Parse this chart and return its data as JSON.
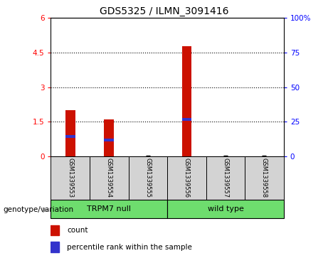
{
  "title": "GDS5325 / ILMN_3091416",
  "samples": [
    "GSM1339553",
    "GSM1339554",
    "GSM1339555",
    "GSM1339556",
    "GSM1339557",
    "GSM1339558"
  ],
  "count_values": [
    2.0,
    1.58,
    0.02,
    4.78,
    0.02,
    0.02
  ],
  "percentile_values": [
    0.85,
    0.7,
    0.0,
    1.6,
    0.0,
    0.0
  ],
  "groups": [
    {
      "label": "TRPM7 null",
      "indices": [
        0,
        1,
        2
      ],
      "color": "#6EDD6E"
    },
    {
      "label": "wild type",
      "indices": [
        3,
        4,
        5
      ],
      "color": "#6EDD6E"
    }
  ],
  "group_label": "genotype/variation",
  "ylim_left": [
    0,
    6
  ],
  "ylim_right": [
    0,
    100
  ],
  "yticks_left": [
    0,
    1.5,
    3.0,
    4.5,
    6.0
  ],
  "ytick_labels_left": [
    "0",
    "1.5",
    "3",
    "4.5",
    "6"
  ],
  "yticks_right": [
    0,
    25,
    50,
    75,
    100
  ],
  "ytick_labels_right": [
    "0",
    "25",
    "50",
    "75",
    "100%"
  ],
  "hlines": [
    1.5,
    3.0,
    4.5
  ],
  "bar_color": "#cc1100",
  "percentile_color": "#3333cc",
  "bar_width": 0.25,
  "bg_color": "#d3d3d3",
  "white": "#ffffff"
}
